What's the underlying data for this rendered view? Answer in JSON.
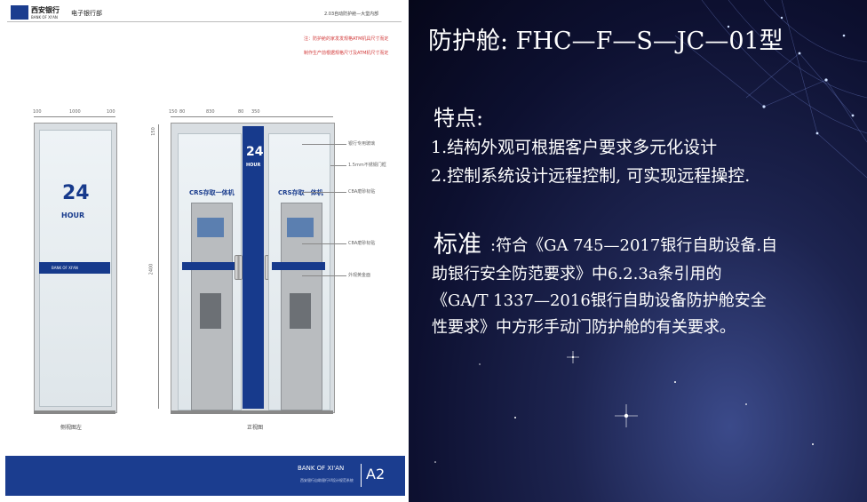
{
  "left_slide": {
    "logo_cn": "西安银行",
    "logo_en": "BANK OF XI'AN",
    "dept": "电子银行部",
    "header_right": "2.03自动防护舱—大堂内部",
    "note_line1": "注：防护舱的家发发规格ATM机具尺寸而定",
    "note_line2": "制作生产前根据规格尺寸及ATM机尺寸而定",
    "side_dims": [
      "100",
      "1000",
      "100"
    ],
    "front_dims": [
      "150",
      "80",
      "830",
      "80",
      "350"
    ],
    "height_dim": "2400",
    "top_dim": "150",
    "panel_24": "24",
    "panel_hour": "HOUR",
    "panel_bank": "BANK OF XI'AN",
    "crs_label": "CRS存取一体机",
    "callouts": [
      "银行专用玻璃",
      "1.5mm不锈钢门框",
      "CBA磨砂标贴",
      "CBA磨砂标贴",
      "外观黄金面"
    ],
    "side_caption": "侧视图左",
    "front_caption": "正视图",
    "footer_bank": "BANK OF XI'AN",
    "footer_sub": "西安银行自助银行VI设计规范系统",
    "footer_code": "A2"
  },
  "right_slide": {
    "title": "防护舱: FHC—F—S—JC—01型",
    "features_heading": "特点:",
    "feature_1": "1.结构外观可根据客户要求多元化设计",
    "feature_2": "2.控制系统设计远程控制, 可实现远程操控.",
    "standard_heading": "标准",
    "standard_line1": ":符合《GA 745—2017银行自助设备.自",
    "standard_line2": "助银行安全防范要求》中6.2.3a条引用的",
    "standard_line3": "《GA/T 1337—2016银行自助设备防护舱安全",
    "standard_line4": "性要求》中方形手动门防护舱的有关要求。"
  },
  "colors": {
    "brand_blue": "#173a8c",
    "footer_blue": "#1b3d8f",
    "bg_dark": "#0d1030"
  }
}
